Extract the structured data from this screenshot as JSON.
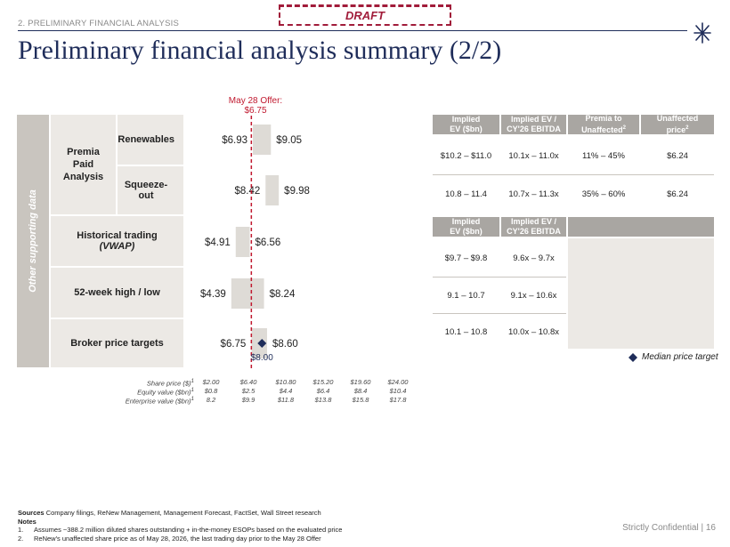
{
  "header": {
    "section": "2. PRELIMINARY FINANCIAL ANALYSIS",
    "draft": "DRAFT",
    "title": "Preliminary financial analysis summary (2/2)"
  },
  "side_label": "Other supporting data",
  "offer_label": [
    "May 28 Offer:",
    "$6.75"
  ],
  "rows": [
    {
      "group": "Premia Paid Analysis",
      "label": "Renewables",
      "low": "$6.93",
      "high": "$9.05"
    },
    {
      "group": "Premia Paid Analysis",
      "label": "Squeeze-out",
      "low": "$8.42",
      "high": "$9.98"
    },
    {
      "label_line1": "Historical trading",
      "label_line2": "(VWAP)",
      "low": "$4.91",
      "high": "$6.56"
    },
    {
      "label": "52-week high / low",
      "low": "$4.39",
      "high": "$8.24"
    },
    {
      "label": "Broker price targets",
      "low": "$6.75",
      "high": "$8.60",
      "median": "$8.00"
    }
  ],
  "chart_data": {
    "type": "bar",
    "subtype": "football-field",
    "categories": [
      "Renewables",
      "Squeeze-out",
      "Historical trading (VWAP)",
      "52-week high / low",
      "Broker price targets"
    ],
    "ranges": [
      [
        6.93,
        9.05
      ],
      [
        8.42,
        9.98
      ],
      [
        4.91,
        6.56
      ],
      [
        4.39,
        8.24
      ],
      [
        6.75,
        8.6
      ]
    ],
    "median": {
      "category": "Broker price targets",
      "value": 8.0
    },
    "reference_line": {
      "label": "May 28 Offer: $6.75",
      "value": 6.75
    },
    "xlim": [
      2.0,
      24.0
    ],
    "ticks": {
      "share_price": [
        "$2.00",
        "$6.40",
        "$10.80",
        "$15.20",
        "$19.60",
        "$24.00"
      ],
      "equity_value": [
        "$0.8",
        "$2.5",
        "$4.4",
        "$6.4",
        "$8.4",
        "$10.4"
      ],
      "enterprise_value": [
        "8.2",
        "$9.9",
        "$11.8",
        "$13.8",
        "$15.8",
        "$17.8"
      ]
    },
    "colors": {
      "bar": "#dedbd6",
      "offer_line": "#c0192f",
      "median": "#1f2d5a"
    }
  },
  "axis_labels": {
    "share_price": "Share price ($)",
    "equity_value": "Equity value ($bn)",
    "enterprise_value": "Enterprise value ($bn)",
    "sup": "1"
  },
  "table1": {
    "headers": [
      "Implied EV ($bn)",
      "Implied EV / CY'26 EBITDA",
      "Premia to Unaffected",
      "Unaffected price"
    ],
    "header_lines": [
      [
        "Implied",
        "EV ($bn)"
      ],
      [
        "Implied EV /",
        "CY'26 EBITDA"
      ],
      [
        "Premia to",
        "Unaffected"
      ],
      [
        "Unaffected",
        "price"
      ]
    ],
    "header_sup": [
      "",
      "",
      "2",
      "2"
    ],
    "rows": [
      [
        "$10.2 – $11.0",
        "10.1x – 11.0x",
        "11% – 45%",
        "$6.24"
      ],
      [
        "10.8 – 11.4",
        "10.7x – 11.3x",
        "35% – 60%",
        "$6.24"
      ]
    ]
  },
  "table2": {
    "header_lines": [
      [
        "Implied",
        "EV ($bn)"
      ],
      [
        "Implied EV /",
        "CY'26 EBITDA"
      ]
    ],
    "rows": [
      [
        "$9.7 – $9.8",
        "9.6x – 9.7x"
      ],
      [
        "9.1 – 10.7",
        "9.1x – 10.6x"
      ],
      [
        "10.1 – 10.8",
        "10.0x – 10.8x"
      ]
    ]
  },
  "legend": {
    "median": "Median price target"
  },
  "notes": {
    "sources_label": "Sources",
    "sources": "Company filings, ReNew Management, Management Forecast, FactSet, Wall Street research",
    "notes_label": "Notes",
    "items": [
      {
        "num": "1.",
        "text": "Assumes ~388.2 million diluted shares outstanding + in-the-money ESOPs based on the evaluated price"
      },
      {
        "num": "2.",
        "text": "ReNew's unaffected share price as of May 28, 2026, the last trading day prior to the May 28 Offer"
      }
    ]
  },
  "footer": {
    "confidential": "Strictly Confidential |",
    "page": "16"
  }
}
